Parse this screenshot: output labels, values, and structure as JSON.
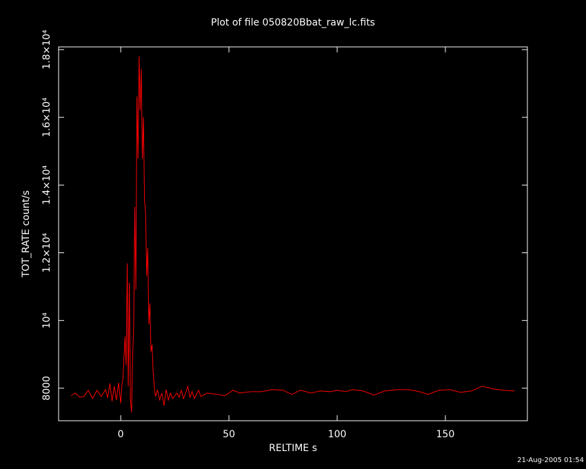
{
  "chart_data": {
    "type": "line",
    "title": "Plot of file 050820Bbat_raw_lc.fits",
    "xlabel": "RELTIME  s",
    "ylabel": "TOT_RATE  count/s",
    "footer": "21-Aug-2005 01:54",
    "x": [
      -23,
      -21,
      -19,
      -17,
      -15,
      -13,
      -11,
      -9,
      -7,
      -6,
      -5,
      -4,
      -3,
      -2,
      -1,
      0,
      0.5,
      1,
      1.5,
      2,
      2.5,
      3,
      3.5,
      4,
      4.5,
      5,
      5.5,
      6,
      6.5,
      7,
      7.5,
      8,
      8.5,
      9,
      9.5,
      10,
      10.5,
      11,
      11.5,
      12,
      12.5,
      13,
      13.5,
      14,
      14.5,
      15,
      15.5,
      16,
      17,
      18,
      19,
      20,
      21,
      22,
      23,
      24,
      26,
      27,
      28,
      29,
      30,
      31,
      32,
      33,
      34,
      36,
      37,
      40,
      45,
      48,
      52,
      55,
      60,
      65,
      70,
      75,
      79,
      83,
      88,
      92,
      97,
      100,
      104,
      107,
      112,
      117,
      122,
      128,
      133,
      138,
      142,
      147,
      152,
      157,
      162,
      167,
      172,
      177,
      182
    ],
    "series": [
      {
        "color": "#ff0000",
        "values": [
          7776,
          7857,
          7735,
          7755,
          7939,
          7694,
          7939,
          7755,
          7959,
          7715,
          8143,
          7613,
          8061,
          7654,
          8163,
          7552,
          8061,
          8265,
          8876,
          9528,
          8672,
          11687,
          8061,
          11116,
          7654,
          7287,
          8876,
          9894,
          13357,
          10913,
          16617,
          14783,
          17798,
          16209,
          17431,
          14783,
          16006,
          13561,
          13153,
          11320,
          12135,
          9894,
          10505,
          9080,
          9283,
          8469,
          8061,
          7755,
          7939,
          7654,
          7857,
          7491,
          7959,
          7654,
          7857,
          7694,
          7857,
          7735,
          7939,
          7694,
          7857,
          8061,
          7735,
          7898,
          7694,
          7939,
          7755,
          7857,
          7817,
          7776,
          7939,
          7857,
          7898,
          7898,
          7959,
          7939,
          7817,
          7939,
          7857,
          7918,
          7898,
          7939,
          7898,
          7959,
          7918,
          7796,
          7918,
          7959,
          7959,
          7898,
          7817,
          7939,
          7959,
          7878,
          7918,
          8061,
          7980,
          7939,
          7918
        ]
      }
    ],
    "xlim": [
      -28.7,
      187.9
    ],
    "ylim": [
      7040,
      18080
    ],
    "xticks": [
      0,
      50,
      100,
      150
    ],
    "yticks": [
      8000,
      {
        "value": 10000,
        "label": "10⁴"
      },
      {
        "value": 12000,
        "label": "1.2×10⁴"
      },
      {
        "value": 14000,
        "label": "1.4×10⁴"
      },
      {
        "value": 16000,
        "label": "1.6×10⁴"
      },
      {
        "value": 18000,
        "label": "1.8×10⁴"
      }
    ],
    "background": "#000000",
    "foreground": "#ffffff"
  }
}
